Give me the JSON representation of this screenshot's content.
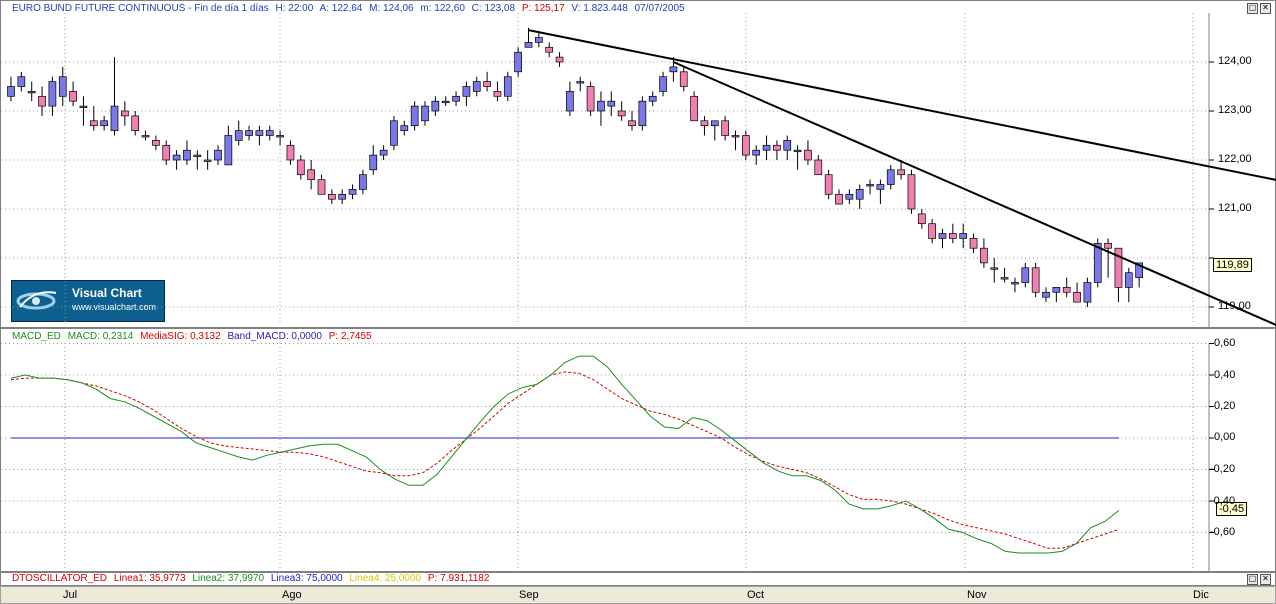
{
  "price_header": {
    "title": "EURO BUND FUTURE CONTINUOUS - Fin de día 1 días",
    "h": "H: 22:00",
    "a": "A: 122,64",
    "m": "M: 124,06",
    "mm": "m: 122,60",
    "c": "C: 123,08",
    "p": "P: 125,17",
    "v": "V: 1.823.448",
    "date": "07/07/2005"
  },
  "macd_header": {
    "name": "MACD_ED",
    "macd": "MACD: 0,2314",
    "sig": "MediaSIG: 0,3132",
    "band": "Band_MACD: 0,0000",
    "p": "P: 2,7455"
  },
  "osc_header": {
    "name": "DTOSCILLATOR_ED",
    "l1": "Linea1: 35,9773",
    "l2": "Linea2: 37,9970",
    "l3": "Linea3: 75,0000",
    "l4": "Linea4: 25,0000",
    "p": "P: 7.931,1182"
  },
  "logo": {
    "title": "Visual Chart",
    "url": "www.visualchart.com"
  },
  "window_buttons": {
    "restore": "▢",
    "close": "✕"
  },
  "price_axis": [
    "124,00",
    "123,00",
    "122,00",
    "121,00",
    "119,00"
  ],
  "price_last": "119,89",
  "macd_axis": [
    "0,60",
    "0,40",
    "0,20",
    "0,00",
    "-0,20",
    "-0,40",
    "-0,60"
  ],
  "macd_last": "-0,45",
  "months": [
    "Jul",
    "Ago",
    "Sep",
    "Oct",
    "Nov",
    "Dic"
  ],
  "colors": {
    "up": "#7878e8",
    "down": "#f07fb0",
    "macd": "#1a8f1a",
    "signal": "#d40000",
    "band": "#1f1fbf"
  },
  "chart_data": [
    {
      "type": "candlestick",
      "title": "EURO BUND FUTURE CONTINUOUS",
      "ylim": [
        118.6,
        125.0
      ],
      "yticks": [
        119,
        120,
        121,
        122,
        123,
        124
      ],
      "candles": [
        [
          123.3,
          123.7,
          123.2,
          123.5
        ],
        [
          123.5,
          123.8,
          123.4,
          123.7
        ],
        [
          123.4,
          123.6,
          123.2,
          123.4
        ],
        [
          123.3,
          123.5,
          122.9,
          123.1
        ],
        [
          123.1,
          123.7,
          122.9,
          123.6
        ],
        [
          123.3,
          123.9,
          123.1,
          123.7
        ],
        [
          123.4,
          123.6,
          123.1,
          123.2
        ],
        [
          123.1,
          123.3,
          122.7,
          123.1
        ],
        [
          122.8,
          123.1,
          122.6,
          122.7
        ],
        [
          122.7,
          122.9,
          122.6,
          122.8
        ],
        [
          122.6,
          124.1,
          122.5,
          123.1
        ],
        [
          123.0,
          123.2,
          122.7,
          122.9
        ],
        [
          122.9,
          123.0,
          122.5,
          122.6
        ],
        [
          122.5,
          122.6,
          122.4,
          122.5
        ],
        [
          122.4,
          122.5,
          122.2,
          122.3
        ],
        [
          122.3,
          122.4,
          121.9,
          122.0
        ],
        [
          122.0,
          122.2,
          121.8,
          122.1
        ],
        [
          122.0,
          122.4,
          121.9,
          122.2
        ],
        [
          122.1,
          122.2,
          121.8,
          122.1
        ],
        [
          122.0,
          122.2,
          121.8,
          122.0
        ],
        [
          122.0,
          122.3,
          121.9,
          122.2
        ],
        [
          121.9,
          122.7,
          121.9,
          122.5
        ],
        [
          122.4,
          122.8,
          122.3,
          122.6
        ],
        [
          122.5,
          122.7,
          122.4,
          122.6
        ],
        [
          122.5,
          122.7,
          122.3,
          122.6
        ],
        [
          122.5,
          122.7,
          122.4,
          122.6
        ],
        [
          122.5,
          122.6,
          122.3,
          122.5
        ],
        [
          122.3,
          122.4,
          121.9,
          122.0
        ],
        [
          122.0,
          122.1,
          121.6,
          121.7
        ],
        [
          121.8,
          122.0,
          121.4,
          121.6
        ],
        [
          121.6,
          121.7,
          121.3,
          121.3
        ],
        [
          121.3,
          121.4,
          121.1,
          121.2
        ],
        [
          121.2,
          121.4,
          121.1,
          121.3
        ],
        [
          121.3,
          121.5,
          121.2,
          121.4
        ],
        [
          121.4,
          121.8,
          121.3,
          121.7
        ],
        [
          121.8,
          122.3,
          121.7,
          122.1
        ],
        [
          122.1,
          122.3,
          122.0,
          122.2
        ],
        [
          122.3,
          122.9,
          122.2,
          122.8
        ],
        [
          122.6,
          122.8,
          122.5,
          122.7
        ],
        [
          122.7,
          123.2,
          122.6,
          123.1
        ],
        [
          122.8,
          123.2,
          122.7,
          123.1
        ],
        [
          123.0,
          123.3,
          122.9,
          123.2
        ],
        [
          123.2,
          123.3,
          123.1,
          123.2
        ],
        [
          123.2,
          123.4,
          123.1,
          123.3
        ],
        [
          123.3,
          123.6,
          123.1,
          123.5
        ],
        [
          123.4,
          123.7,
          123.3,
          123.6
        ],
        [
          123.6,
          123.8,
          123.4,
          123.5
        ],
        [
          123.4,
          123.6,
          123.2,
          123.3
        ],
        [
          123.3,
          123.8,
          123.2,
          123.7
        ],
        [
          123.8,
          124.3,
          123.7,
          124.2
        ],
        [
          124.3,
          124.7,
          124.3,
          124.4
        ],
        [
          124.4,
          124.6,
          124.3,
          124.5
        ],
        [
          124.3,
          124.4,
          124.1,
          124.2
        ],
        [
          124.1,
          124.2,
          123.9,
          124.0
        ],
        [
          123.0,
          123.6,
          122.9,
          123.4
        ],
        [
          123.6,
          123.7,
          123.4,
          123.6
        ],
        [
          123.5,
          123.6,
          122.9,
          123.0
        ],
        [
          123.0,
          123.4,
          122.7,
          123.2
        ],
        [
          123.1,
          123.4,
          122.9,
          123.2
        ],
        [
          123.0,
          123.2,
          122.8,
          122.9
        ],
        [
          122.8,
          123.0,
          122.6,
          122.7
        ],
        [
          122.7,
          123.3,
          122.6,
          123.2
        ],
        [
          123.2,
          123.4,
          123.1,
          123.3
        ],
        [
          123.4,
          123.8,
          123.3,
          123.7
        ],
        [
          123.8,
          124.1,
          123.6,
          123.9
        ],
        [
          123.8,
          123.9,
          123.4,
          123.5
        ],
        [
          123.3,
          123.4,
          122.8,
          122.8
        ],
        [
          122.8,
          122.9,
          122.5,
          122.7
        ],
        [
          122.7,
          122.8,
          122.4,
          122.8
        ],
        [
          122.8,
          122.9,
          122.4,
          122.5
        ],
        [
          122.5,
          122.6,
          122.2,
          122.5
        ],
        [
          122.5,
          122.6,
          122.0,
          122.1
        ],
        [
          122.1,
          122.3,
          121.9,
          122.2
        ],
        [
          122.2,
          122.5,
          122.0,
          122.3
        ],
        [
          122.3,
          122.4,
          122.0,
          122.2
        ],
        [
          122.2,
          122.5,
          122.0,
          122.4
        ],
        [
          122.2,
          122.3,
          121.8,
          122.2
        ],
        [
          122.2,
          122.4,
          121.9,
          122.0
        ],
        [
          122.0,
          122.1,
          121.7,
          121.7
        ],
        [
          121.7,
          121.8,
          121.2,
          121.3
        ],
        [
          121.3,
          121.4,
          121.1,
          121.1
        ],
        [
          121.2,
          121.4,
          121.1,
          121.3
        ],
        [
          121.2,
          121.5,
          121.0,
          121.4
        ],
        [
          121.5,
          121.6,
          121.3,
          121.5
        ],
        [
          121.4,
          121.6,
          121.1,
          121.5
        ],
        [
          121.5,
          121.9,
          121.4,
          121.8
        ],
        [
          121.8,
          122.0,
          121.6,
          121.7
        ],
        [
          121.7,
          121.8,
          120.9,
          121.0
        ],
        [
          120.9,
          121.0,
          120.6,
          120.7
        ],
        [
          120.7,
          120.8,
          120.3,
          120.4
        ],
        [
          120.4,
          120.6,
          120.2,
          120.5
        ],
        [
          120.5,
          120.7,
          120.3,
          120.4
        ],
        [
          120.4,
          120.7,
          120.2,
          120.5
        ],
        [
          120.4,
          120.5,
          120.1,
          120.2
        ],
        [
          120.2,
          120.4,
          119.8,
          119.9
        ],
        [
          119.8,
          120.0,
          119.5,
          119.8
        ],
        [
          119.6,
          119.8,
          119.5,
          119.6
        ],
        [
          119.5,
          119.6,
          119.3,
          119.5
        ],
        [
          119.5,
          119.9,
          119.4,
          119.8
        ],
        [
          119.8,
          119.9,
          119.2,
          119.3
        ],
        [
          119.2,
          119.4,
          119.1,
          119.3
        ],
        [
          119.3,
          119.4,
          119.1,
          119.4
        ],
        [
          119.4,
          119.6,
          119.2,
          119.3
        ],
        [
          119.3,
          119.5,
          119.1,
          119.1
        ],
        [
          119.1,
          119.6,
          119.0,
          119.5
        ],
        [
          119.5,
          120.4,
          119.4,
          120.3
        ],
        [
          120.3,
          120.4,
          119.6,
          120.2
        ],
        [
          120.2,
          120.2,
          119.1,
          119.4
        ],
        [
          119.4,
          119.8,
          119.1,
          119.7
        ],
        [
          119.6,
          119.9,
          119.4,
          119.9
        ]
      ],
      "trendlines": [
        {
          "x0": 50,
          "y0": 124.65,
          "x1": 115,
          "y1": 121.9
        },
        {
          "x0": 64,
          "y0": 124.0,
          "x1": 115,
          "y1": 119.3
        }
      ]
    },
    {
      "type": "line",
      "title": "MACD_ED",
      "ylim": [
        -0.7,
        0.62
      ],
      "yticks": [
        0.6,
        0.4,
        0.2,
        0.0,
        -0.2,
        -0.4,
        -0.6
      ],
      "series": [
        {
          "name": "MACD",
          "values": [
            0.38,
            0.4,
            0.38,
            0.38,
            0.37,
            0.35,
            0.31,
            0.25,
            0.23,
            0.19,
            0.14,
            0.09,
            0.04,
            -0.03,
            -0.06,
            -0.09,
            -0.12,
            -0.14,
            -0.11,
            -0.09,
            -0.07,
            -0.05,
            -0.04,
            -0.04,
            -0.08,
            -0.12,
            -0.2,
            -0.26,
            -0.3,
            -0.3,
            -0.23,
            -0.12,
            -0.01,
            0.1,
            0.2,
            0.28,
            0.32,
            0.34,
            0.4,
            0.48,
            0.52,
            0.52,
            0.45,
            0.34,
            0.24,
            0.14,
            0.07,
            0.06,
            0.13,
            0.11,
            0.05,
            -0.02,
            -0.09,
            -0.16,
            -0.21,
            -0.24,
            -0.24,
            -0.27,
            -0.33,
            -0.42,
            -0.45,
            -0.45,
            -0.43,
            -0.4,
            -0.45,
            -0.51,
            -0.58,
            -0.6,
            -0.64,
            -0.67,
            -0.72,
            -0.73,
            -0.73,
            -0.73,
            -0.72,
            -0.67,
            -0.57,
            -0.53,
            -0.46
          ]
        },
        {
          "name": "MediaSIG",
          "values": [
            0.37,
            0.38,
            0.38,
            0.38,
            0.37,
            0.35,
            0.33,
            0.3,
            0.27,
            0.23,
            0.18,
            0.12,
            0.06,
            0.01,
            -0.03,
            -0.05,
            -0.06,
            -0.07,
            -0.08,
            -0.09,
            -0.09,
            -0.1,
            -0.12,
            -0.15,
            -0.18,
            -0.21,
            -0.22,
            -0.24,
            -0.24,
            -0.22,
            -0.16,
            -0.08,
            -0.01,
            0.06,
            0.14,
            0.22,
            0.28,
            0.34,
            0.4,
            0.42,
            0.41,
            0.37,
            0.31,
            0.25,
            0.21,
            0.17,
            0.15,
            0.12,
            0.08,
            0.04,
            0.0,
            -0.06,
            -0.11,
            -0.15,
            -0.18,
            -0.2,
            -0.22,
            -0.26,
            -0.31,
            -0.36,
            -0.39,
            -0.39,
            -0.4,
            -0.42,
            -0.45,
            -0.48,
            -0.52,
            -0.55,
            -0.57,
            -0.59,
            -0.61,
            -0.64,
            -0.67,
            -0.7,
            -0.7,
            -0.67,
            -0.64,
            -0.61,
            -0.58
          ]
        },
        {
          "name": "Band_MACD",
          "values": [
            0.0
          ]
        }
      ]
    }
  ]
}
